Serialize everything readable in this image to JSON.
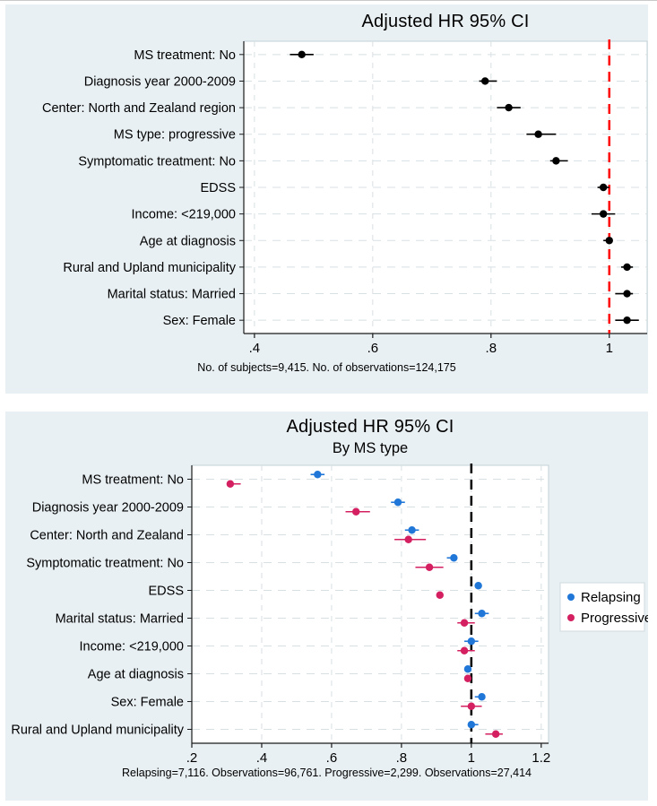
{
  "colors": {
    "panel_background": "#e9f0f3",
    "plot_background": "#ffffff",
    "grid": "#d8e0e4",
    "axis": "#1a1a1a",
    "black_series": "#000000",
    "relapsing_blue": "#2077d8",
    "progressive_crimson": "#d42060",
    "reference_red": "#ff0000",
    "reference_black": "#000000"
  },
  "chart_data": [
    {
      "type": "scatter",
      "variant": "forest-dot-plot",
      "title": "Adjusted HR 95% CI",
      "subtitle": "",
      "caption": "No. of subjects=9,415. No. of observations=124,175",
      "xlim": [
        0.382,
        1.064
      ],
      "xticks": [
        0.4,
        0.6,
        0.8,
        1.0
      ],
      "xtick_labels": [
        ".4",
        ".6",
        ".8",
        "1"
      ],
      "grid": true,
      "reference_line": {
        "x": 1.0,
        "color": "#ff0000",
        "style": "dashed"
      },
      "legend": null,
      "categories": [
        "MS treatment: No",
        "Diagnosis year 2000-2009",
        "Center: North and Zealand region",
        "MS type: progressive",
        "Symptomatic treatment: No",
        "EDSS",
        "Income: <219,000",
        "Age at diagnosis",
        "Rural and Upland municipality",
        "Marital status: Married",
        "Sex: Female"
      ],
      "series": [
        {
          "name": "Adjusted HR",
          "color": "#000000",
          "points": [
            {
              "x": 0.48,
              "lo": 0.46,
              "hi": 0.5
            },
            {
              "x": 0.79,
              "lo": 0.78,
              "hi": 0.81
            },
            {
              "x": 0.83,
              "lo": 0.81,
              "hi": 0.85
            },
            {
              "x": 0.88,
              "lo": 0.86,
              "hi": 0.91
            },
            {
              "x": 0.91,
              "lo": 0.9,
              "hi": 0.93
            },
            {
              "x": 0.99,
              "lo": 0.98,
              "hi": 1.0
            },
            {
              "x": 0.99,
              "lo": 0.97,
              "hi": 1.01
            },
            {
              "x": 1.0,
              "lo": 0.99,
              "hi": 1.0
            },
            {
              "x": 1.03,
              "lo": 1.02,
              "hi": 1.04
            },
            {
              "x": 1.03,
              "lo": 1.01,
              "hi": 1.04
            },
            {
              "x": 1.03,
              "lo": 1.01,
              "hi": 1.05
            }
          ]
        }
      ]
    },
    {
      "type": "scatter",
      "variant": "forest-dot-plot",
      "title": "Adjusted HR 95% CI",
      "subtitle": "By MS type",
      "caption": "Relapsing=7,116. Observations=96,761. Progressive=2,299. Observations=27,414",
      "xlim": [
        0.2,
        1.221
      ],
      "xticks": [
        0.2,
        0.4,
        0.6,
        0.8,
        1.0,
        1.2
      ],
      "xtick_labels": [
        ".2",
        ".4",
        ".6",
        ".8",
        "1",
        "1.2"
      ],
      "grid": true,
      "reference_line": {
        "x": 1.0,
        "color": "#000000",
        "style": "dashed"
      },
      "legend": {
        "position": "right",
        "entries": [
          "Relapsing",
          "Progressive"
        ]
      },
      "categories": [
        "MS treatment: No",
        "Diagnosis year 2000-2009",
        "Center: North and Zealand",
        "Symptomatic treatment: No",
        "EDSS",
        "Marital status: Married",
        "Income: <219,000",
        "Age at diagnosis",
        "Sex: Female",
        "Rural and Upland municipality"
      ],
      "series": [
        {
          "name": "Relapsing",
          "color": "#2077d8",
          "points": [
            {
              "x": 0.56,
              "lo": 0.54,
              "hi": 0.58
            },
            {
              "x": 0.79,
              "lo": 0.77,
              "hi": 0.81
            },
            {
              "x": 0.83,
              "lo": 0.81,
              "hi": 0.85
            },
            {
              "x": 0.95,
              "lo": 0.93,
              "hi": 0.96
            },
            {
              "x": 1.02,
              "lo": 1.01,
              "hi": 1.03
            },
            {
              "x": 1.03,
              "lo": 1.01,
              "hi": 1.05
            },
            {
              "x": 1.0,
              "lo": 0.98,
              "hi": 1.02
            },
            {
              "x": 0.99,
              "lo": 0.98,
              "hi": 1.0
            },
            {
              "x": 1.03,
              "lo": 1.01,
              "hi": 1.04
            },
            {
              "x": 1.0,
              "lo": 0.99,
              "hi": 1.02
            }
          ]
        },
        {
          "name": "Progressive",
          "color": "#d42060",
          "points": [
            {
              "x": 0.31,
              "lo": 0.3,
              "hi": 0.34
            },
            {
              "x": 0.67,
              "lo": 0.64,
              "hi": 0.71
            },
            {
              "x": 0.82,
              "lo": 0.78,
              "hi": 0.87
            },
            {
              "x": 0.88,
              "lo": 0.84,
              "hi": 0.92
            },
            {
              "x": 0.91,
              "lo": 0.9,
              "hi": 0.92
            },
            {
              "x": 0.98,
              "lo": 0.96,
              "hi": 1.01
            },
            {
              "x": 0.98,
              "lo": 0.96,
              "hi": 1.01
            },
            {
              "x": 0.99,
              "lo": 0.98,
              "hi": 1.0
            },
            {
              "x": 1.0,
              "lo": 0.97,
              "hi": 1.03
            },
            {
              "x": 1.07,
              "lo": 1.04,
              "hi": 1.09
            }
          ]
        }
      ]
    }
  ]
}
